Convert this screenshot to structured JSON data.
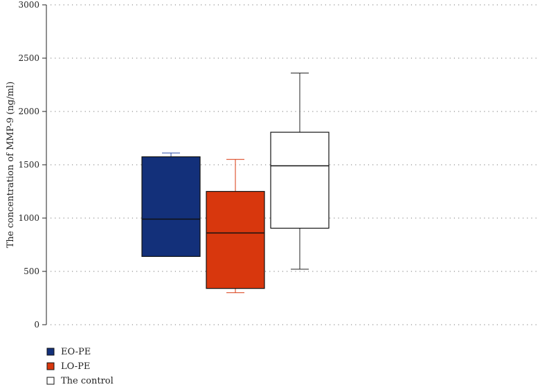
{
  "chart_data": {
    "type": "box",
    "title": "",
    "xlabel": "",
    "ylabel": "The concentration of MMP-9 (ng/ml)",
    "ylim": [
      0,
      3000
    ],
    "yticks": [
      0,
      500,
      1000,
      1500,
      2000,
      2500,
      3000
    ],
    "grid": "horizontal-dotted",
    "legend_position": "bottom-left",
    "series": [
      {
        "name": "EO-PE",
        "color": "#13307a",
        "whisker_color": "#2a4aa6",
        "min": 640,
        "q1": 640,
        "median": 990,
        "q3": 1575,
        "max": 1610
      },
      {
        "name": "LO-PE",
        "color": "#d8370d",
        "whisker_color": "#d8370d",
        "min": 300,
        "q1": 340,
        "median": 860,
        "q3": 1250,
        "max": 1550
      },
      {
        "name": "The control",
        "color": "#ffffff",
        "whisker_color": "#222222",
        "min": 520,
        "q1": 905,
        "median": 1490,
        "q3": 1805,
        "max": 2360
      }
    ]
  }
}
